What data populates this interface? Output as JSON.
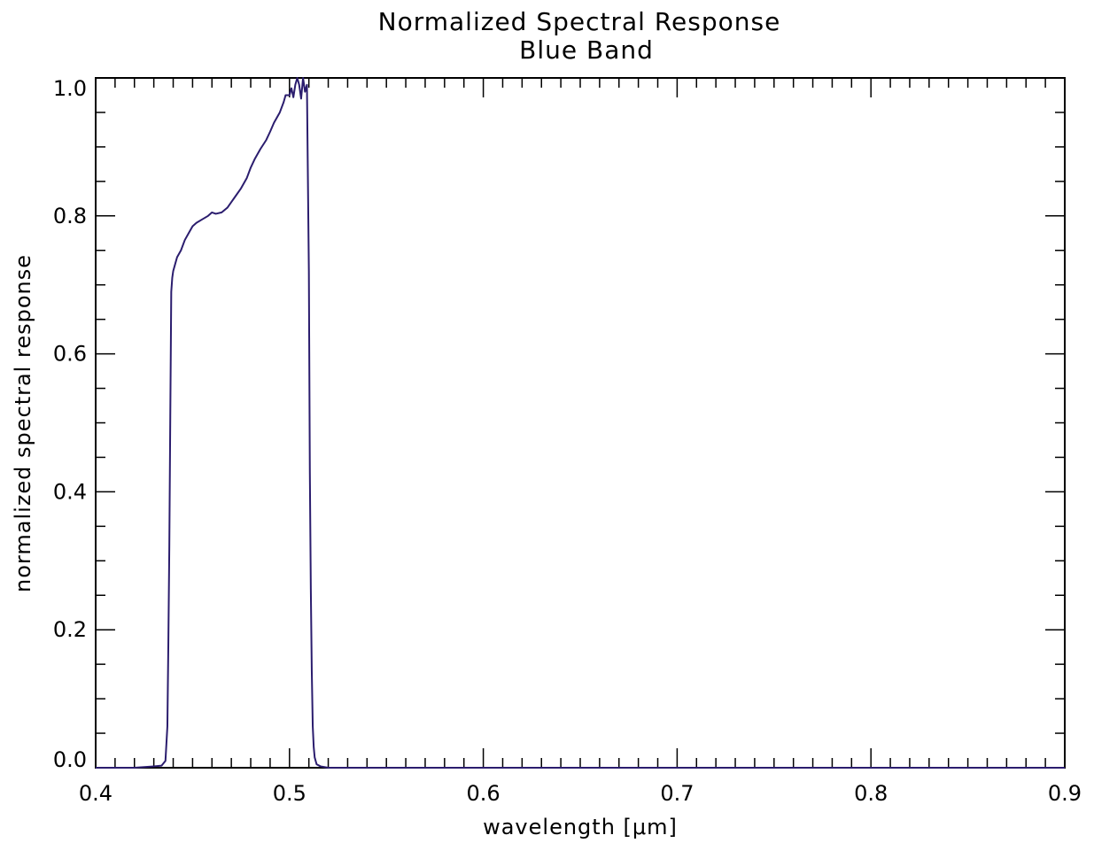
{
  "chart_data": {
    "type": "line",
    "title": "Normalized Spectral Response",
    "subtitle": "Blue Band",
    "xlabel": "wavelength [μm]",
    "ylabel": "normalized spectral response",
    "xlim": [
      0.4,
      0.9
    ],
    "ylim": [
      0.0,
      1.0
    ],
    "x_ticks": [
      0.4,
      0.5,
      0.6,
      0.7,
      0.8,
      0.9
    ],
    "x_tick_labels": [
      "0.4",
      "0.5",
      "0.6",
      "0.7",
      "0.8",
      "0.9"
    ],
    "y_ticks": [
      0.0,
      0.2,
      0.4,
      0.6,
      0.8,
      1.0
    ],
    "y_tick_labels": [
      "0.0",
      "0.2",
      "0.4",
      "0.6",
      "0.8",
      "1.0"
    ],
    "x_minor_step": 0.01,
    "y_minor_step": 0.05,
    "grid": false,
    "line_color": "#2b1d6e",
    "series": [
      {
        "x": [
          0.4,
          0.41,
          0.42,
          0.43,
          0.434,
          0.436,
          0.437,
          0.4375,
          0.438,
          0.4385,
          0.439,
          0.4395,
          0.44,
          0.441,
          0.442,
          0.444,
          0.446,
          0.448,
          0.45,
          0.452,
          0.455,
          0.458,
          0.46,
          0.462,
          0.465,
          0.468,
          0.47,
          0.472,
          0.475,
          0.478,
          0.48,
          0.482,
          0.485,
          0.488,
          0.49,
          0.492,
          0.495,
          0.497,
          0.498,
          0.5,
          0.501,
          0.502,
          0.503,
          0.504,
          0.505,
          0.506,
          0.507,
          0.508,
          0.509,
          0.51,
          0.5105,
          0.511,
          0.5115,
          0.512,
          0.5125,
          0.513,
          0.514,
          0.516,
          0.518,
          0.52,
          0.54,
          0.56,
          0.6,
          0.64,
          0.68,
          0.7,
          0.74,
          0.78,
          0.8,
          0.85,
          0.9
        ],
        "y": [
          0.0,
          0.0,
          0.0,
          0.002,
          0.003,
          0.01,
          0.06,
          0.18,
          0.32,
          0.51,
          0.69,
          0.71,
          0.72,
          0.73,
          0.74,
          0.75,
          0.765,
          0.775,
          0.785,
          0.79,
          0.795,
          0.8,
          0.805,
          0.803,
          0.805,
          0.812,
          0.82,
          0.828,
          0.84,
          0.855,
          0.87,
          0.882,
          0.897,
          0.91,
          0.922,
          0.935,
          0.95,
          0.965,
          0.975,
          0.975,
          0.985,
          0.972,
          0.99,
          1.0,
          0.99,
          0.97,
          1.0,
          0.98,
          0.99,
          0.72,
          0.43,
          0.26,
          0.14,
          0.06,
          0.03,
          0.015,
          0.005,
          0.002,
          0.001,
          0.0,
          0.0,
          0.0,
          0.0,
          0.0,
          0.0,
          0.0,
          0.0,
          0.0,
          0.0,
          0.0,
          0.0
        ]
      }
    ]
  }
}
